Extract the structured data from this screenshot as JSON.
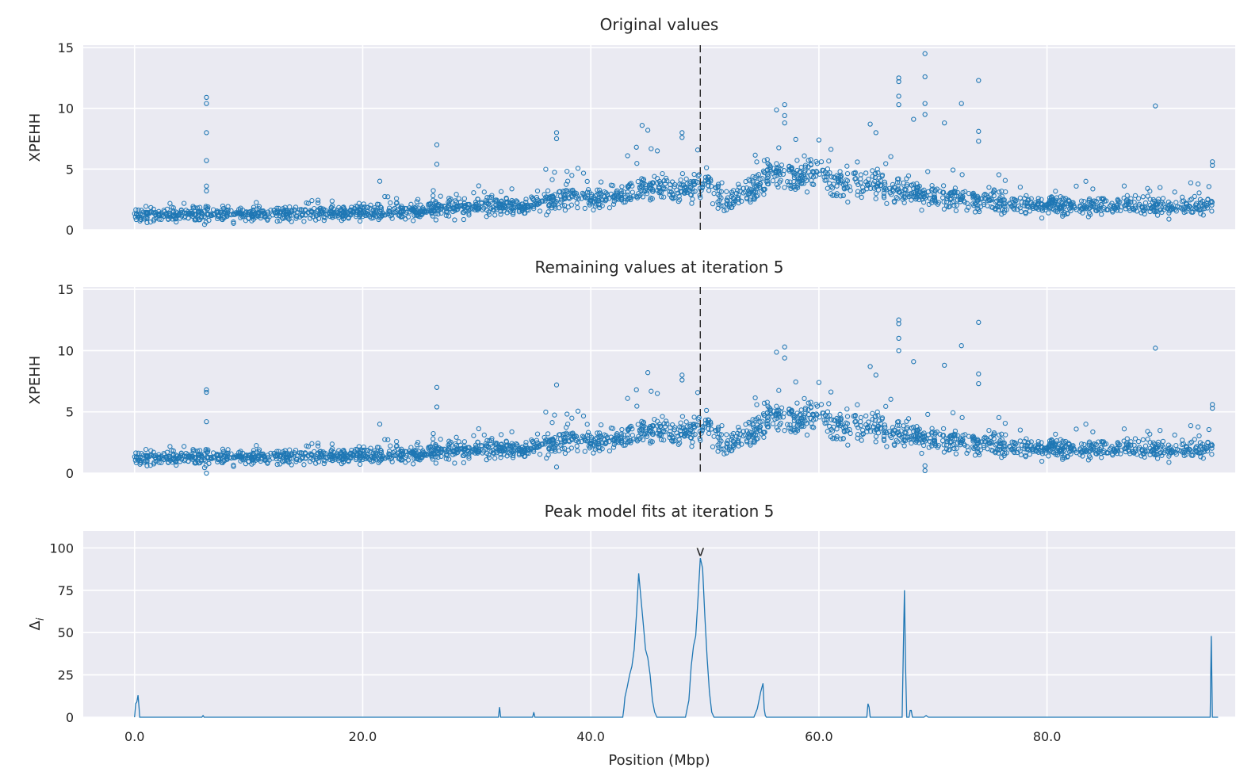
{
  "chart_data": [
    {
      "type": "scatter",
      "title": "Original values",
      "ylabel": "XPEHH",
      "xlabel": "",
      "xlim": [
        -4.5,
        96.5
      ],
      "ylim": [
        0,
        15.2
      ],
      "yticks": [
        0,
        5,
        10,
        15
      ],
      "xticks": [
        0.0,
        20.0,
        40.0,
        60.0,
        80.0
      ],
      "xtick_labels": [],
      "grid": true,
      "vline_x": 49.6,
      "color": "#1f77b4",
      "baseline": [
        [
          0,
          1.2
        ],
        [
          4,
          1.2
        ],
        [
          8,
          1.25
        ],
        [
          12,
          1.3
        ],
        [
          16,
          1.35
        ],
        [
          20,
          1.4
        ],
        [
          24,
          1.5
        ],
        [
          27,
          1.7
        ],
        [
          30,
          2.0
        ],
        [
          34,
          1.9
        ],
        [
          36,
          2.3
        ],
        [
          38,
          2.8
        ],
        [
          40,
          2.5
        ],
        [
          43,
          2.9
        ],
        [
          45,
          3.6
        ],
        [
          48,
          3.1
        ],
        [
          50,
          3.9
        ],
        [
          52,
          2.2
        ],
        [
          54,
          3.2
        ],
        [
          56,
          4.6
        ],
        [
          58,
          4.2
        ],
        [
          60,
          4.8
        ],
        [
          62,
          3.6
        ],
        [
          64,
          3.9
        ],
        [
          66,
          3.5
        ],
        [
          68,
          3.1
        ],
        [
          70,
          2.8
        ],
        [
          74,
          2.4
        ],
        [
          78,
          2.1
        ],
        [
          82,
          2.0
        ],
        [
          86,
          1.95
        ],
        [
          90,
          1.9
        ],
        [
          94.5,
          1.9
        ]
      ],
      "outliers": [
        [
          6.3,
          10.9
        ],
        [
          6.3,
          10.4
        ],
        [
          6.3,
          8.0
        ],
        [
          6.3,
          5.7
        ],
        [
          6.3,
          3.6
        ],
        [
          6.3,
          3.2
        ],
        [
          21.5,
          4.0
        ],
        [
          26.5,
          7.0
        ],
        [
          26.5,
          5.4
        ],
        [
          37,
          8.0
        ],
        [
          37,
          7.5
        ],
        [
          44,
          6.8
        ],
        [
          44.5,
          8.6
        ],
        [
          45,
          8.2
        ],
        [
          48,
          8.0
        ],
        [
          48,
          7.6
        ],
        [
          57,
          10.3
        ],
        [
          57,
          9.4
        ],
        [
          57,
          8.8
        ],
        [
          60,
          7.4
        ],
        [
          64.5,
          8.7
        ],
        [
          65,
          8.0
        ],
        [
          67,
          12.5
        ],
        [
          67,
          12.2
        ],
        [
          67,
          11.0
        ],
        [
          67,
          10.3
        ],
        [
          68.3,
          9.1
        ],
        [
          69.3,
          14.5
        ],
        [
          69.3,
          12.6
        ],
        [
          69.3,
          10.4
        ],
        [
          69.3,
          9.5
        ],
        [
          71,
          8.8
        ],
        [
          72.5,
          10.4
        ],
        [
          74,
          12.3
        ],
        [
          74,
          8.1
        ],
        [
          74,
          7.3
        ],
        [
          89.5,
          10.2
        ],
        [
          94.5,
          5.6
        ],
        [
          94.5,
          5.3
        ]
      ]
    },
    {
      "type": "scatter",
      "title": "Remaining values at iteration 5",
      "ylabel": "XPEHH",
      "xlabel": "",
      "xlim": [
        -4.5,
        96.5
      ],
      "ylim": [
        0,
        15.2
      ],
      "yticks": [
        0,
        5,
        10,
        15
      ],
      "xticks": [
        0.0,
        20.0,
        40.0,
        60.0,
        80.0
      ],
      "xtick_labels": [],
      "grid": true,
      "vline_x": 49.6,
      "color": "#1f77b4",
      "baseline": [
        [
          0,
          1.2
        ],
        [
          4,
          1.2
        ],
        [
          8,
          1.25
        ],
        [
          12,
          1.3
        ],
        [
          16,
          1.35
        ],
        [
          20,
          1.4
        ],
        [
          24,
          1.5
        ],
        [
          27,
          1.7
        ],
        [
          30,
          2.0
        ],
        [
          34,
          1.9
        ],
        [
          36,
          2.3
        ],
        [
          38,
          2.8
        ],
        [
          40,
          2.5
        ],
        [
          43,
          2.9
        ],
        [
          45,
          3.6
        ],
        [
          48,
          3.1
        ],
        [
          50,
          3.9
        ],
        [
          52,
          2.2
        ],
        [
          54,
          3.2
        ],
        [
          56,
          4.6
        ],
        [
          58,
          4.2
        ],
        [
          60,
          4.8
        ],
        [
          62,
          3.6
        ],
        [
          64,
          3.9
        ],
        [
          66,
          3.5
        ],
        [
          68,
          3.1
        ],
        [
          70,
          2.8
        ],
        [
          74,
          2.4
        ],
        [
          78,
          2.1
        ],
        [
          82,
          2.0
        ],
        [
          86,
          1.95
        ],
        [
          90,
          1.9
        ],
        [
          94.5,
          1.9
        ]
      ],
      "outliers": [
        [
          6.3,
          6.8
        ],
        [
          6.3,
          6.6
        ],
        [
          6.3,
          4.2
        ],
        [
          6.3,
          0.0
        ],
        [
          21.5,
          4.0
        ],
        [
          26.5,
          7.0
        ],
        [
          26.5,
          5.4
        ],
        [
          37,
          7.2
        ],
        [
          37,
          0.5
        ],
        [
          44,
          6.8
        ],
        [
          45,
          8.2
        ],
        [
          48,
          8.0
        ],
        [
          48,
          7.6
        ],
        [
          57,
          10.3
        ],
        [
          57,
          9.4
        ],
        [
          60,
          7.4
        ],
        [
          64.5,
          8.7
        ],
        [
          65,
          8.0
        ],
        [
          67,
          12.5
        ],
        [
          67,
          12.2
        ],
        [
          67,
          11.0
        ],
        [
          67,
          10.0
        ],
        [
          68.3,
          9.1
        ],
        [
          69.3,
          0.6
        ],
        [
          69.3,
          0.2
        ],
        [
          71,
          8.8
        ],
        [
          72.5,
          10.4
        ],
        [
          74,
          12.3
        ],
        [
          74,
          8.1
        ],
        [
          74,
          7.3
        ],
        [
          89.5,
          10.2
        ],
        [
          94.5,
          5.6
        ],
        [
          94.5,
          5.3
        ]
      ]
    },
    {
      "type": "line",
      "title": "Peak model fits at iteration 5",
      "ylabel": "Δ",
      "ylabel_sub": "i",
      "xlabel": "Position (Mbp)",
      "xlim": [
        -4.5,
        96.5
      ],
      "ylim": [
        0,
        110
      ],
      "yticks": [
        0,
        25,
        50,
        75,
        100
      ],
      "xticks": [
        0.0,
        20.0,
        40.0,
        60.0,
        80.0
      ],
      "xtick_labels": [
        "0.0",
        "20.0",
        "40.0",
        "60.0",
        "80.0"
      ],
      "grid": true,
      "marker": {
        "x": 49.6,
        "text": "v"
      },
      "color": "#1f77b4",
      "x": [
        0,
        0.1,
        0.2,
        0.3,
        0.4,
        0.45,
        0.5,
        5.9,
        6.0,
        6.1,
        31.9,
        32.0,
        32.1,
        34.9,
        35.0,
        35.1,
        42.8,
        42.9,
        43.0,
        43.2,
        43.4,
        43.6,
        43.8,
        44.0,
        44.2,
        44.4,
        44.6,
        44.8,
        45.0,
        45.2,
        45.4,
        45.6,
        45.8,
        48.3,
        48.6,
        48.8,
        49.0,
        49.2,
        49.4,
        49.6,
        49.8,
        50.0,
        50.2,
        50.4,
        50.6,
        50.8,
        54.3,
        54.6,
        54.9,
        55.1,
        55.2,
        55.3,
        55.4,
        61.4,
        61.5,
        64.2,
        64.3,
        64.4,
        64.5,
        64.6,
        67.3,
        67.4,
        67.5,
        67.6,
        67.7,
        67.8,
        67.9,
        68.0,
        68.1,
        68.2,
        68.3,
        68.4,
        69.2,
        69.4,
        69.6,
        94.2,
        94.3,
        94.4,
        94.5,
        94.6
      ],
      "y": [
        0,
        8,
        9,
        13,
        5,
        0,
        0,
        0,
        1,
        0,
        0,
        6,
        0,
        0,
        3,
        0,
        0,
        5,
        12,
        18,
        25,
        30,
        40,
        60,
        85,
        70,
        55,
        40,
        35,
        25,
        10,
        3,
        0,
        0,
        10,
        30,
        42,
        48,
        70,
        94,
        88,
        60,
        35,
        15,
        3,
        0,
        0,
        5,
        15,
        20,
        5,
        1,
        0,
        0,
        0,
        0,
        8,
        6,
        0,
        0,
        0,
        40,
        75,
        30,
        0,
        0,
        0,
        4,
        4,
        0,
        0,
        0,
        0,
        1,
        0,
        0,
        0,
        48,
        0,
        0
      ]
    }
  ]
}
